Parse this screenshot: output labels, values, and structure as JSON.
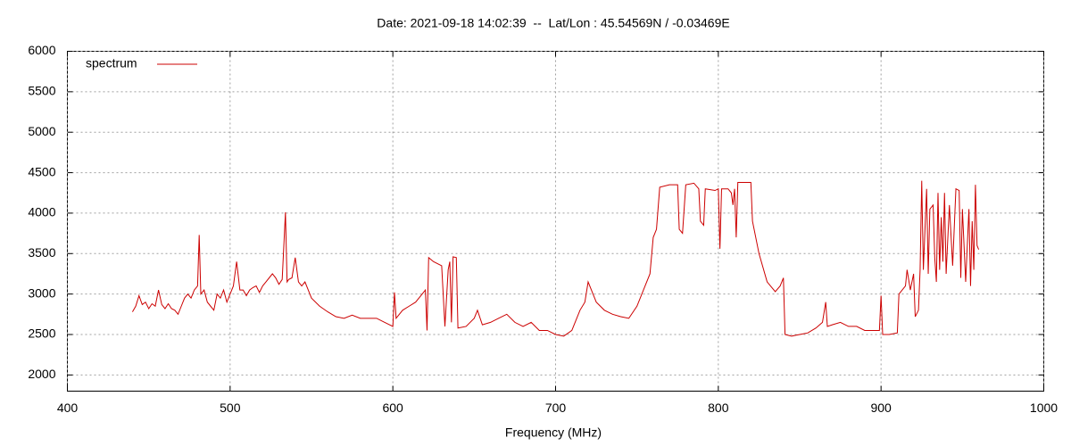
{
  "chart_data": {
    "type": "line",
    "title": "Date: 2021-09-18 14:02:39  --  Lat/Lon : 45.54569N / -0.03469E",
    "xlabel": "Frequency (MHz)",
    "xlim": [
      400,
      1000
    ],
    "xticks": [
      400,
      500,
      600,
      700,
      800,
      900,
      1000
    ],
    "ylim": [
      1800,
      6000
    ],
    "yticks": [
      2000,
      2500,
      3000,
      3500,
      4000,
      4500,
      5000,
      5500,
      6000
    ],
    "grid": true,
    "legend": "top-left",
    "x": [
      440,
      442,
      444,
      446,
      448,
      450,
      452,
      454,
      456,
      458,
      460,
      462,
      464,
      466,
      468,
      470,
      472,
      474,
      476,
      478,
      480,
      481,
      482,
      484,
      486,
      488,
      490,
      492,
      494,
      496,
      498,
      500,
      502,
      504,
      506,
      508,
      510,
      512,
      514,
      516,
      518,
      520,
      522,
      524,
      526,
      528,
      530,
      532,
      534,
      535,
      536,
      538,
      540,
      542,
      544,
      546,
      548,
      550,
      555,
      560,
      565,
      570,
      575,
      580,
      585,
      590,
      595,
      600,
      601,
      602,
      606,
      610,
      614,
      618,
      620,
      621,
      622,
      625,
      630,
      632,
      634,
      635,
      636,
      637,
      639,
      640,
      645,
      650,
      652,
      655,
      660,
      665,
      670,
      675,
      680,
      685,
      690,
      695,
      700,
      705,
      710,
      715,
      718,
      720,
      722,
      725,
      730,
      735,
      740,
      745,
      750,
      755,
      758,
      760,
      762,
      764,
      770,
      775,
      776,
      778,
      780,
      785,
      788,
      789,
      791,
      792,
      798,
      800,
      801,
      802,
      806,
      808,
      809,
      810,
      811,
      812,
      818,
      820,
      821,
      825,
      830,
      835,
      838,
      840,
      841,
      845,
      850,
      855,
      860,
      864,
      866,
      867,
      870,
      875,
      880,
      885,
      890,
      895,
      899,
      900,
      901,
      905,
      910,
      911,
      915,
      916,
      918,
      920,
      921,
      923,
      924,
      925,
      926,
      928,
      929,
      930,
      932,
      933,
      934,
      935,
      936,
      937,
      938,
      939,
      940,
      942,
      944,
      946,
      948,
      949,
      950,
      952,
      954,
      955,
      956,
      957,
      958,
      959,
      960
    ],
    "series": [
      {
        "name": "spectrum",
        "color": "#cc0000",
        "values": [
          2780,
          2850,
          2980,
          2870,
          2900,
          2820,
          2880,
          2850,
          3050,
          2870,
          2820,
          2880,
          2820,
          2800,
          2750,
          2850,
          2950,
          3000,
          2950,
          3050,
          3100,
          3730,
          3000,
          3050,
          2900,
          2850,
          2800,
          3000,
          2950,
          3050,
          2900,
          3000,
          3100,
          3400,
          3050,
          3050,
          2980,
          3050,
          3080,
          3100,
          3020,
          3100,
          3150,
          3200,
          3250,
          3200,
          3120,
          3180,
          4010,
          3150,
          3180,
          3200,
          3450,
          3150,
          3100,
          3150,
          3050,
          2950,
          2850,
          2780,
          2720,
          2700,
          2740,
          2700,
          2700,
          2700,
          2650,
          2600,
          3020,
          2700,
          2800,
          2850,
          2900,
          3000,
          3050,
          2550,
          3450,
          3400,
          3350,
          2600,
          3300,
          3400,
          2650,
          3460,
          3450,
          2580,
          2600,
          2700,
          2800,
          2620,
          2650,
          2700,
          2750,
          2650,
          2600,
          2650,
          2550,
          2550,
          2500,
          2480,
          2550,
          2800,
          2900,
          3150,
          3050,
          2900,
          2800,
          2750,
          2720,
          2700,
          2850,
          3100,
          3250,
          3700,
          3800,
          4320,
          4350,
          4350,
          3800,
          3750,
          4350,
          4370,
          4300,
          3900,
          3850,
          4300,
          4280,
          4300,
          3560,
          4300,
          4300,
          4250,
          4100,
          4300,
          3700,
          4380,
          4380,
          4380,
          3900,
          3500,
          3150,
          3030,
          3100,
          3200,
          2500,
          2480,
          2500,
          2520,
          2580,
          2650,
          2900,
          2600,
          2620,
          2650,
          2600,
          2600,
          2550,
          2550,
          2550,
          2980,
          2500,
          2500,
          2520,
          3000,
          3100,
          3300,
          3050,
          3250,
          2720,
          2800,
          3300,
          4400,
          3300,
          4300,
          3250,
          4050,
          4100,
          3450,
          3150,
          4250,
          3300,
          3950,
          3400,
          4250,
          3250,
          4100,
          3350,
          4300,
          4280,
          3200,
          4050,
          3150,
          4050,
          3100,
          3900,
          3300,
          4350,
          3600,
          3550
        ]
      }
    ]
  }
}
